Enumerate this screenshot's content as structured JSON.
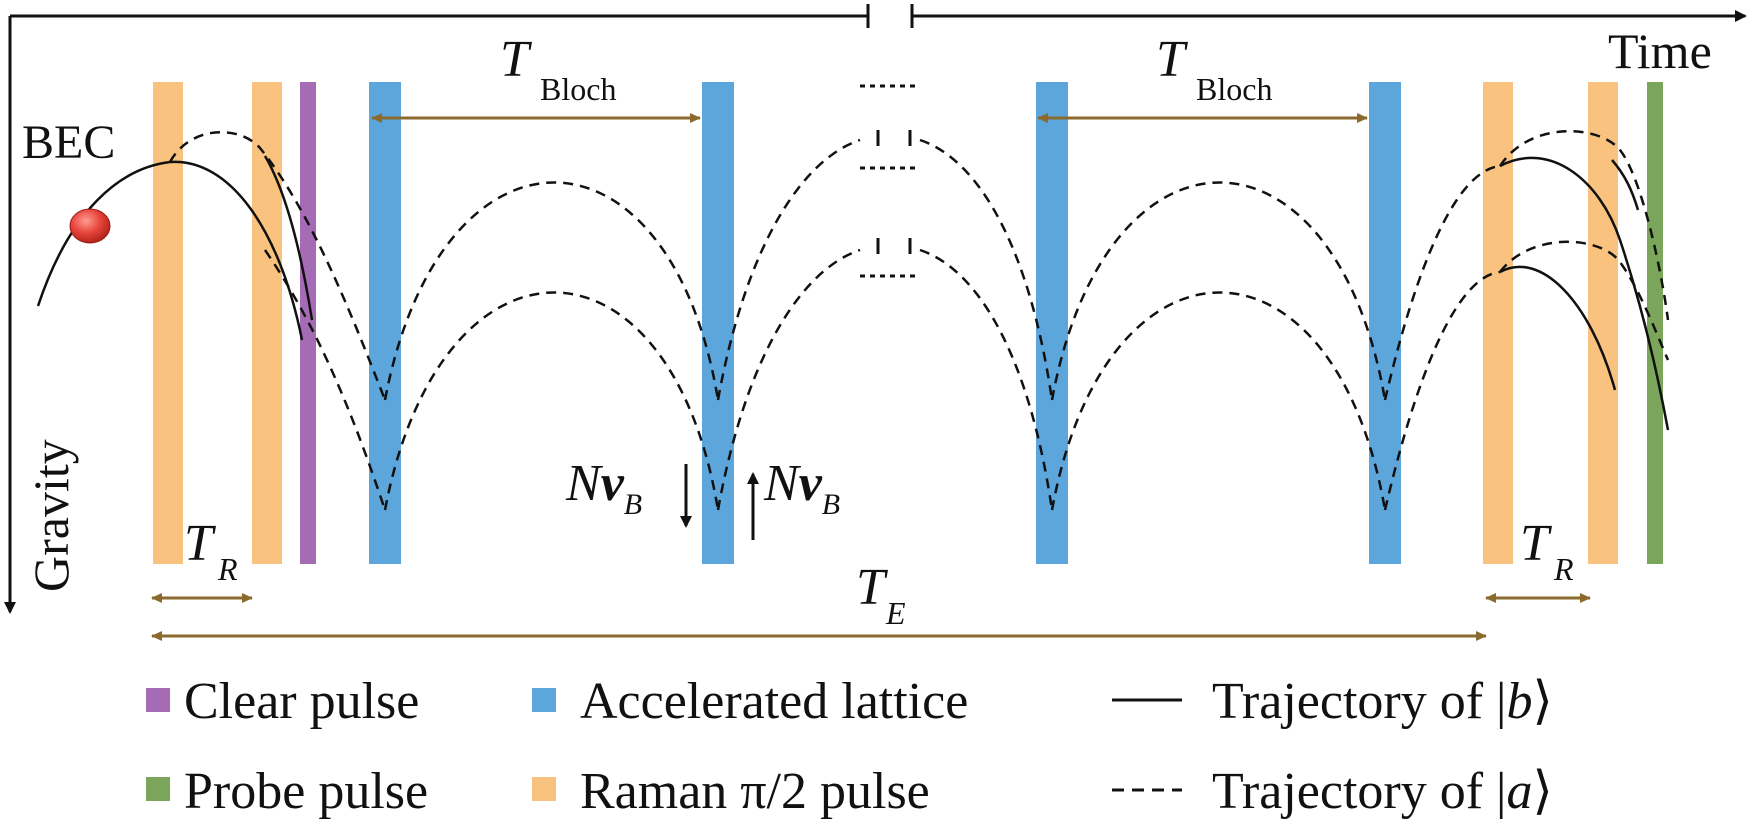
{
  "axes": {
    "time_label": "Time",
    "gravity_label": "Gravity"
  },
  "labels": {
    "bec": "BEC",
    "t_bloch_main": "T",
    "t_bloch_sub": "Bloch",
    "t_r_main": "T",
    "t_r_sub": "R",
    "t_e_main": "T",
    "t_e_sub": "E",
    "nv_n": "N",
    "nv_v": "v",
    "nv_sub": "B"
  },
  "legend": {
    "clear_pulse": "Clear pulse",
    "probe_pulse": "Probe pulse",
    "accelerated_lattice": "Accelerated lattice",
    "raman_pulse": "Raman π/2 pulse",
    "traj_b_prefix": "Trajectory of |",
    "traj_b_state": "b",
    "traj_a_prefix": "Trajectory of |",
    "traj_a_state": "a",
    "ket_close": "⟩"
  },
  "colors": {
    "raman": "#F9C27F",
    "lattice": "#5CA6DC",
    "clear": "#A66BB5",
    "probe": "#7BA55A",
    "bec": "#E8453C",
    "dim_arrow": "#8B6A2E",
    "line": "#111111"
  }
}
